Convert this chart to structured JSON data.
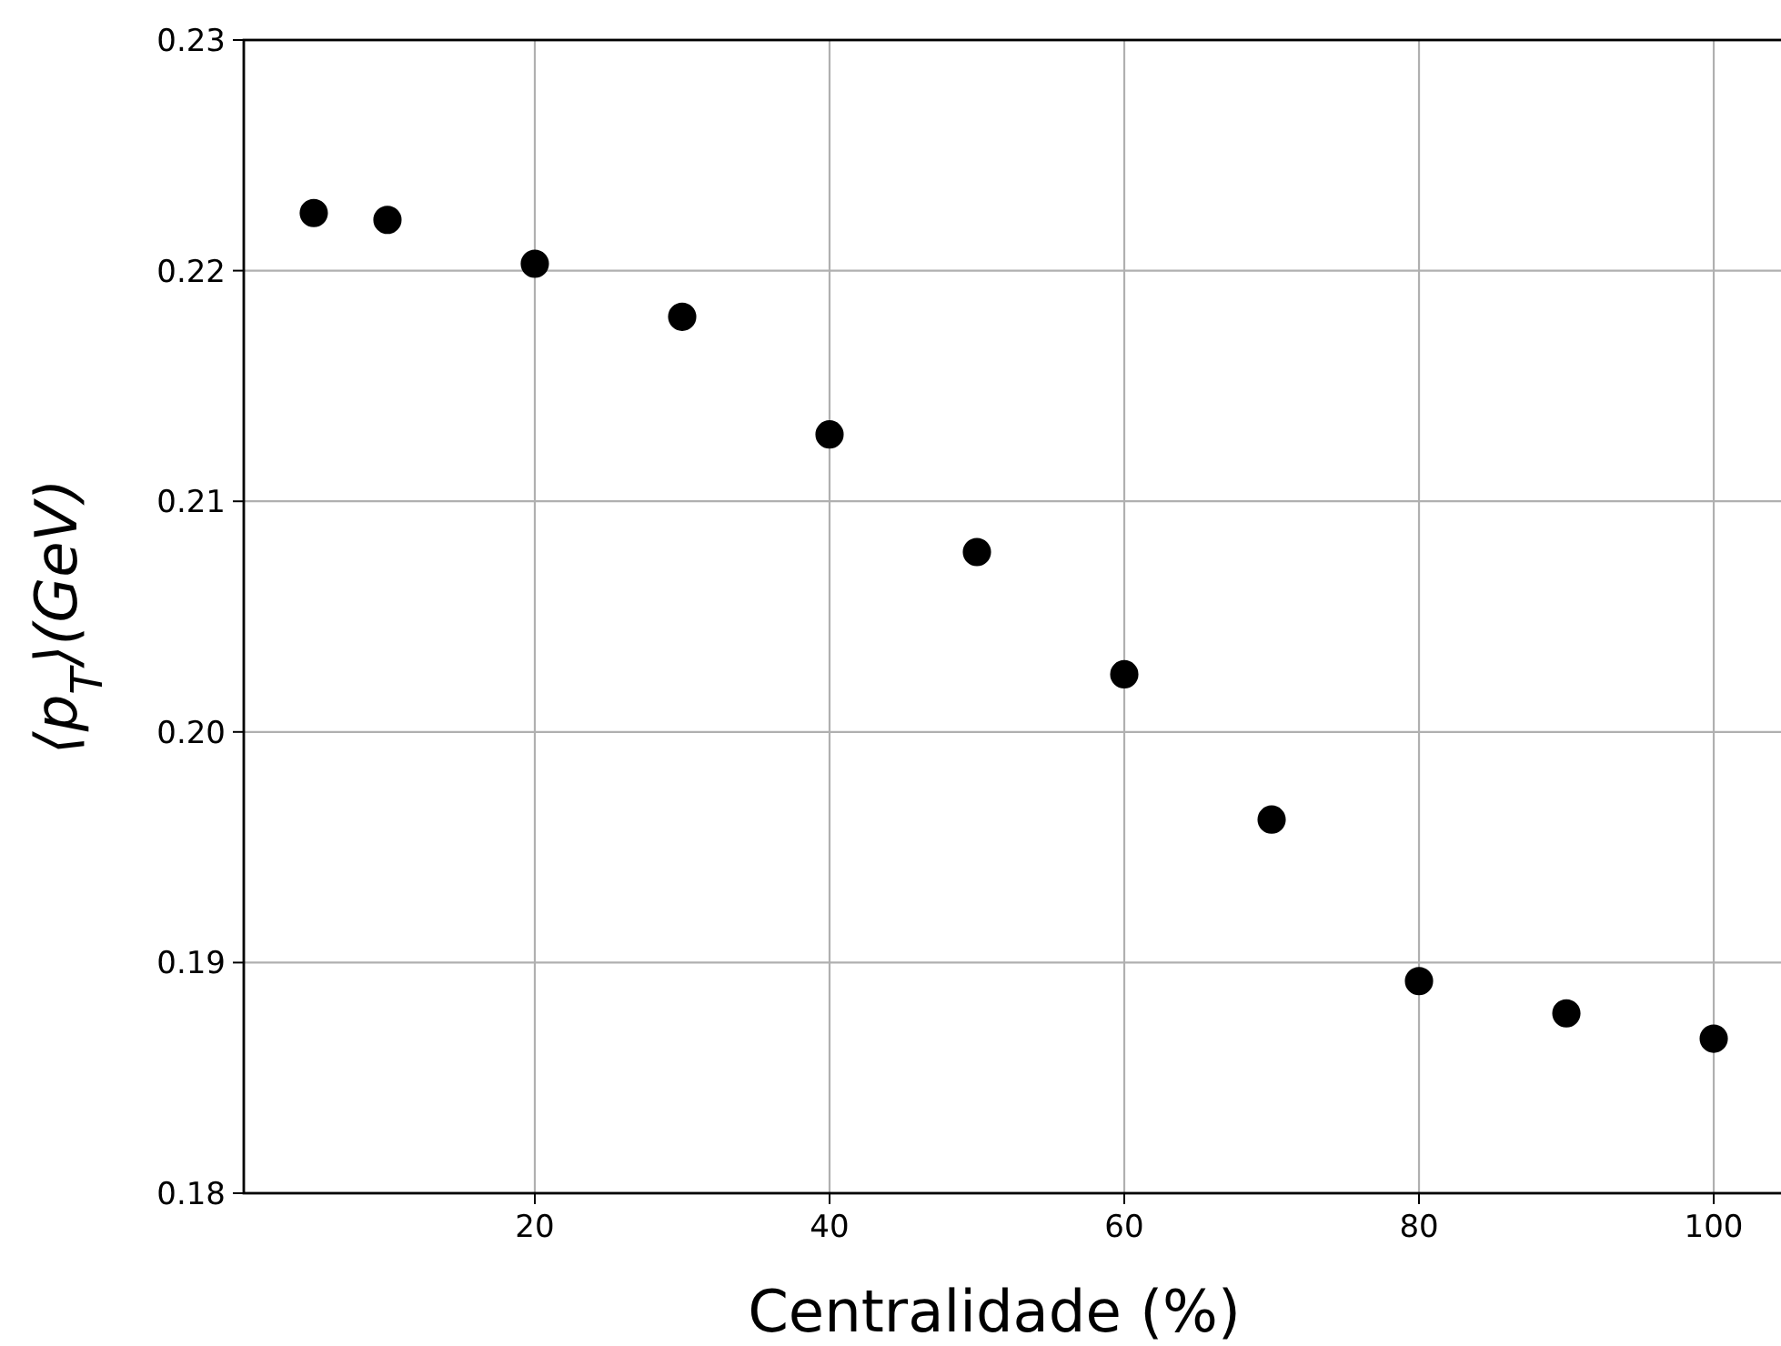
{
  "chart_data": {
    "type": "scatter",
    "xlabel": "Centralidade (%)",
    "ylabel": "⟨p$_{T}$⟩(GeV)",
    "x": [
      5,
      10,
      20,
      30,
      40,
      50,
      60,
      70,
      80,
      90,
      100
    ],
    "series": [
      {
        "color": "#000000",
        "values": [
          0.2225,
          0.2222,
          0.2203,
          0.218,
          0.2129,
          0.2078,
          0.2025,
          0.1962,
          0.1892,
          0.1878,
          0.1867
        ]
      }
    ],
    "xlim": [
      0.25,
      104.75
    ],
    "ylim": [
      0.18,
      0.23
    ],
    "xticks": [
      20,
      40,
      60,
      80,
      100
    ],
    "yticks": [
      0.18,
      0.19,
      {
        "value": 0.2,
        "label": "0.20"
      },
      0.21,
      0.22,
      0.23
    ],
    "grid": true,
    "marker": "circle"
  }
}
